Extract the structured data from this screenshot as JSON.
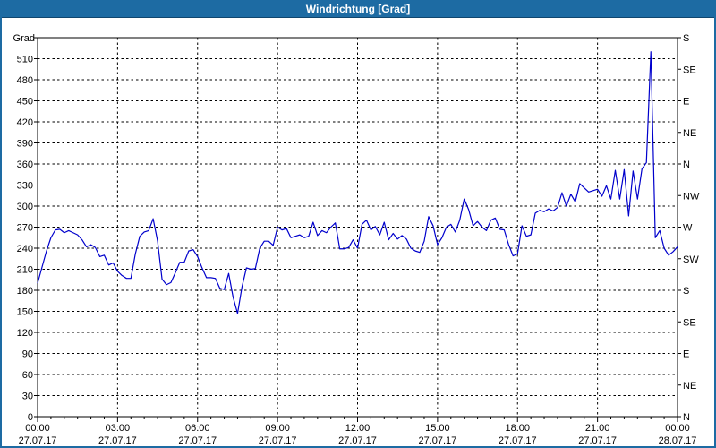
{
  "window": {
    "title": "Windrichtung [Grad]"
  },
  "colors": {
    "title_bar": "#1d6ba3",
    "frame": "#1d6ba3",
    "line": "#0000cc",
    "grid": "#000000",
    "axis": "#000000",
    "background": "#ffffff",
    "title_text": "#ffffff"
  },
  "chart_data": {
    "type": "line",
    "title": "Windrichtung [Grad]",
    "unit_label": "Grad",
    "grid": "dashed",
    "legend_position": "none",
    "y_axis_left": {
      "min": 0,
      "max": 540,
      "step": 30,
      "tick_labels": [
        "0",
        "30",
        "60",
        "90",
        "120",
        "150",
        "180",
        "210",
        "240",
        "270",
        "300",
        "330",
        "360",
        "390",
        "420",
        "450",
        "480",
        "510"
      ]
    },
    "y_axis_right": {
      "step": 45,
      "labels": [
        {
          "value": 0,
          "label": "N"
        },
        {
          "value": 45,
          "label": "NE"
        },
        {
          "value": 90,
          "label": "E"
        },
        {
          "value": 135,
          "label": "SE"
        },
        {
          "value": 180,
          "label": "S"
        },
        {
          "value": 225,
          "label": "SW"
        },
        {
          "value": 270,
          "label": "W"
        },
        {
          "value": 315,
          "label": "NW"
        },
        {
          "value": 360,
          "label": "N"
        },
        {
          "value": 405,
          "label": "NE"
        },
        {
          "value": 450,
          "label": "E"
        },
        {
          "value": 495,
          "label": "SE"
        },
        {
          "value": 540,
          "label": "S"
        }
      ]
    },
    "x_axis": {
      "range_hours": [
        0,
        24
      ],
      "major_step_hours": 3,
      "minor_step_hours": 0.5,
      "ticks": [
        {
          "hour": 0,
          "time": "00:00",
          "date": "27.07.17"
        },
        {
          "hour": 3,
          "time": "03:00",
          "date": "27.07.17"
        },
        {
          "hour": 6,
          "time": "06:00",
          "date": "27.07.17"
        },
        {
          "hour": 9,
          "time": "09:00",
          "date": "27.07.17"
        },
        {
          "hour": 12,
          "time": "12:00",
          "date": "27.07.17"
        },
        {
          "hour": 15,
          "time": "15:00",
          "date": "27.07.17"
        },
        {
          "hour": 18,
          "time": "18:00",
          "date": "27.07.17"
        },
        {
          "hour": 21,
          "time": "21:00",
          "date": "27.07.17"
        },
        {
          "hour": 24,
          "time": "00:00",
          "date": "28.07.17"
        }
      ]
    },
    "series": [
      {
        "name": "Windrichtung",
        "sample_minutes": 10,
        "start_time": "00:00",
        "values": [
          190,
          213,
          236,
          255,
          266,
          267,
          262,
          265,
          262,
          259,
          252,
          242,
          245,
          241,
          228,
          230,
          216,
          219,
          207,
          201,
          197,
          197,
          232,
          257,
          263,
          265,
          282,
          250,
          196,
          188,
          191,
          205,
          220,
          220,
          236,
          238,
          228,
          212,
          198,
          198,
          197,
          183,
          181,
          204,
          170,
          147,
          185,
          212,
          210,
          211,
          240,
          250,
          250,
          244,
          270,
          266,
          268,
          255,
          257,
          259,
          255,
          257,
          277,
          258,
          265,
          262,
          270,
          276,
          239,
          239,
          241,
          252,
          240,
          274,
          280,
          266,
          271,
          259,
          277,
          252,
          261,
          253,
          258,
          253,
          240,
          236,
          234,
          250,
          285,
          272,
          245,
          255,
          270,
          274,
          263,
          280,
          310,
          295,
          272,
          278,
          270,
          265,
          280,
          283,
          267,
          266,
          245,
          229,
          232,
          272,
          257,
          259,
          290,
          294,
          292,
          296,
          293,
          298,
          319,
          300,
          317,
          306,
          332,
          326,
          320,
          322,
          324,
          314,
          329,
          310,
          351,
          310,
          352,
          286,
          350,
          310,
          353,
          362,
          520,
          255,
          265,
          240,
          230,
          235,
          242
        ]
      }
    ]
  }
}
